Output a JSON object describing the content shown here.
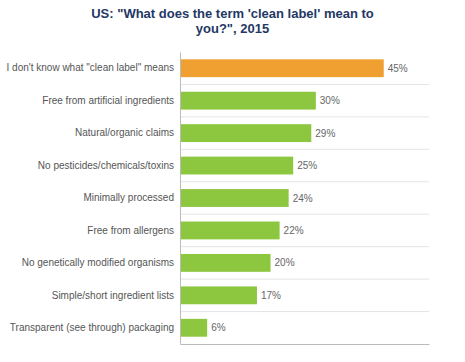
{
  "chart_data": {
    "type": "bar",
    "orientation": "horizontal",
    "title": "US: \"What does the term 'clean label' mean to\nyou?\", 2015",
    "categories": [
      "Transparent (see through) packaging",
      "Simple/short ingredient lists",
      "No genetically modified organisms",
      "Free from allergens",
      "Minimally processed",
      "No pesticides/chemicals/toxins",
      "Natural/organic claims",
      "Free from artificial ingredients",
      "I don't know what \"clean label\" means"
    ],
    "values": [
      6,
      17,
      20,
      22,
      24,
      25,
      29,
      30,
      45
    ],
    "value_labels": [
      "6%",
      "17%",
      "20%",
      "22%",
      "24%",
      "25%",
      "29%",
      "30%",
      "45%"
    ],
    "colors": [
      "#8dc63f",
      "#8dc63f",
      "#8dc63f",
      "#8dc63f",
      "#8dc63f",
      "#8dc63f",
      "#8dc63f",
      "#8dc63f",
      "#f0a030"
    ],
    "xlim": [
      0,
      55
    ],
    "data_labels": true,
    "tick_labels": "y"
  }
}
